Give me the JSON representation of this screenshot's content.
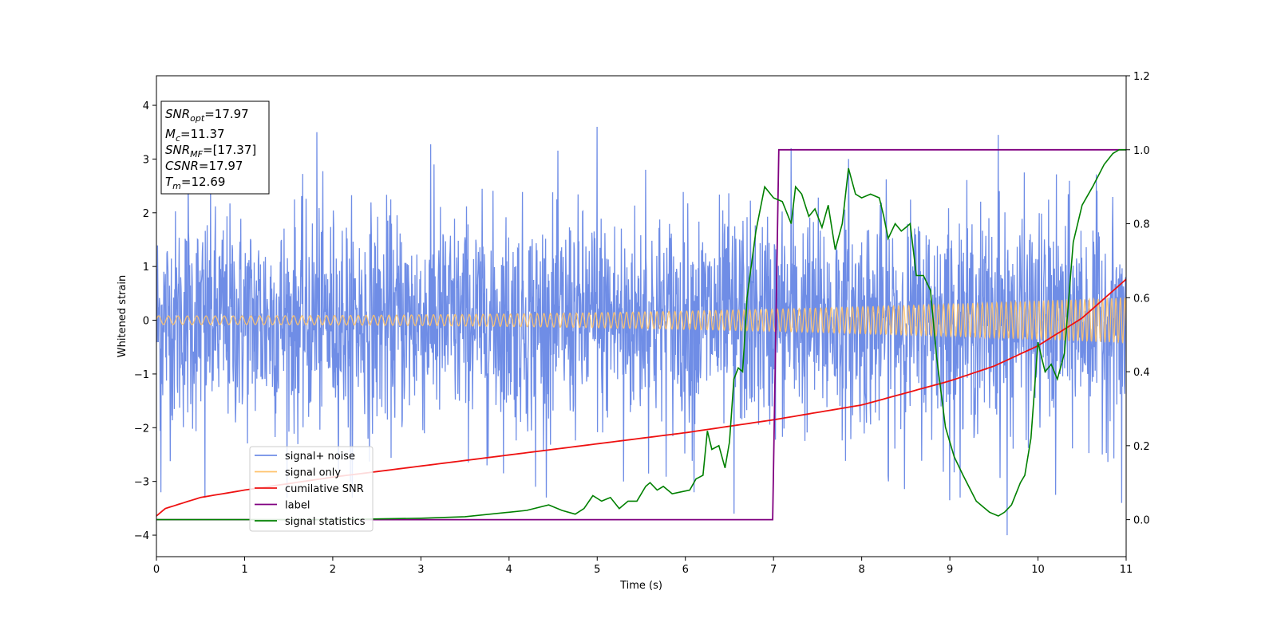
{
  "chart_data": {
    "type": "line",
    "xlabel": "Time (s)",
    "ylabel": "Whitened strain",
    "xlim": [
      0,
      11
    ],
    "ylim": [
      -4.4,
      4.55
    ],
    "y2lim": [
      -0.1,
      1.2
    ],
    "x_ticks": [
      0,
      1,
      2,
      3,
      4,
      5,
      6,
      7,
      8,
      9,
      10,
      11
    ],
    "x_tick_labels": [
      "0",
      "1",
      "2",
      "3",
      "4",
      "5",
      "6",
      "7",
      "8",
      "9",
      "10",
      "11"
    ],
    "y_ticks": [
      -4,
      -3,
      -2,
      -1,
      0,
      1,
      2,
      3,
      4
    ],
    "y_tick_labels": [
      "−4",
      "−3",
      "−2",
      "−1",
      "0",
      "1",
      "2",
      "3",
      "4"
    ],
    "y2_ticks": [
      0.0,
      0.2,
      0.4,
      0.6,
      0.8,
      1.0,
      1.2
    ],
    "y2_tick_labels": [
      "0.0",
      "0.2",
      "0.4",
      "0.6",
      "0.8",
      "1.0",
      "1.2"
    ],
    "grid": false,
    "legend_position": "lower-left",
    "colors": {
      "signal_noise": "#6f8de6",
      "signal_only": "#ffc36b",
      "cumulative_snr": "#ee1111",
      "label": "#800080",
      "signal_statistics": "#008000"
    },
    "series": [
      {
        "name": "signal+ noise",
        "key": "signal_noise",
        "axis": "left",
        "note_values": "dense noise, amplitude ~1 sigma, peaks to about ±3.6",
        "x_range": [
          0,
          11
        ],
        "peak_x": [
          0.05,
          0.36,
          0.55,
          1.82,
          2.2,
          3.15,
          3.75,
          4.3,
          5.0,
          5.3,
          5.55,
          6.1,
          6.55,
          7.2,
          7.85,
          8.3,
          9.0,
          9.55,
          9.65,
          10.2,
          10.95
        ],
        "peak_y": [
          -3.2,
          2.8,
          -3.3,
          3.5,
          -3.0,
          2.9,
          -2.7,
          -3.1,
          3.6,
          -3.0,
          2.8,
          -3.2,
          -3.6,
          3.2,
          3.0,
          -2.9,
          -3.35,
          3.45,
          -4.0,
          -3.25,
          -3.4
        ]
      },
      {
        "name": "signal only",
        "key": "signal_only",
        "axis": "left",
        "x_range": [
          0,
          11
        ],
        "amplitude_start": 0.08,
        "amplitude_end": 0.42
      },
      {
        "name": "cumilative SNR",
        "key": "cumulative_snr",
        "axis": "right",
        "x": [
          0,
          0.1,
          0.5,
          1,
          2,
          3,
          4,
          5,
          6,
          7,
          8,
          9,
          9.5,
          10,
          10.5,
          11
        ],
        "values": [
          0.01,
          0.03,
          0.06,
          0.08,
          0.115,
          0.145,
          0.175,
          0.205,
          0.235,
          0.27,
          0.31,
          0.375,
          0.415,
          0.47,
          0.545,
          0.65
        ]
      },
      {
        "name": "label",
        "key": "label",
        "axis": "right",
        "x": [
          0,
          6.99,
          7.06,
          11
        ],
        "values": [
          0,
          0,
          1,
          1
        ]
      },
      {
        "name": "signal statistics",
        "key": "signal_statistics",
        "axis": "right",
        "x": [
          0,
          1,
          2,
          2.5,
          3,
          3.5,
          4,
          4.2,
          4.45,
          4.6,
          4.75,
          4.85,
          4.95,
          5.05,
          5.15,
          5.25,
          5.35,
          5.45,
          5.55,
          5.6,
          5.68,
          5.75,
          5.85,
          5.95,
          6.05,
          6.12,
          6.2,
          6.25,
          6.3,
          6.38,
          6.45,
          6.5,
          6.55,
          6.6,
          6.65,
          6.7,
          6.8,
          6.9,
          7.0,
          7.1,
          7.2,
          7.25,
          7.32,
          7.4,
          7.47,
          7.55,
          7.62,
          7.7,
          7.78,
          7.85,
          7.93,
          8.0,
          8.1,
          8.2,
          8.25,
          8.3,
          8.38,
          8.45,
          8.5,
          8.55,
          8.62,
          8.7,
          8.78,
          8.85,
          8.95,
          9.05,
          9.15,
          9.3,
          9.45,
          9.55,
          9.62,
          9.7,
          9.8,
          9.85,
          9.92,
          10.0,
          10.08,
          10.15,
          10.22,
          10.3,
          10.4,
          10.5,
          10.62,
          10.75,
          10.85,
          10.92,
          11.0
        ],
        "values": [
          0.0,
          0.0,
          0.0,
          0.002,
          0.004,
          0.008,
          0.02,
          0.025,
          0.04,
          0.025,
          0.015,
          0.03,
          0.065,
          0.05,
          0.06,
          0.03,
          0.05,
          0.05,
          0.09,
          0.1,
          0.08,
          0.09,
          0.07,
          0.075,
          0.08,
          0.11,
          0.12,
          0.24,
          0.19,
          0.2,
          0.14,
          0.21,
          0.38,
          0.41,
          0.4,
          0.6,
          0.78,
          0.9,
          0.87,
          0.86,
          0.8,
          0.9,
          0.88,
          0.82,
          0.84,
          0.79,
          0.85,
          0.73,
          0.8,
          0.95,
          0.88,
          0.87,
          0.88,
          0.87,
          0.82,
          0.76,
          0.8,
          0.78,
          0.79,
          0.8,
          0.66,
          0.66,
          0.62,
          0.44,
          0.25,
          0.17,
          0.12,
          0.05,
          0.02,
          0.01,
          0.02,
          0.04,
          0.1,
          0.12,
          0.22,
          0.48,
          0.4,
          0.42,
          0.38,
          0.45,
          0.75,
          0.85,
          0.9,
          0.96,
          0.99,
          1.0,
          1.0
        ]
      }
    ],
    "annotation_box": {
      "lines": [
        {
          "base": "SNR",
          "sub": "opt",
          "rest": "=17.97"
        },
        {
          "base": "M",
          "sub": "c",
          "rest": "=11.37"
        },
        {
          "base": "SNR",
          "sub": "MF",
          "rest": "=[17.37]"
        },
        {
          "base": "CSNR",
          "sub": "",
          "rest": "=17.97"
        },
        {
          "base": "T",
          "sub": "m",
          "rest": "=12.69"
        }
      ]
    }
  }
}
